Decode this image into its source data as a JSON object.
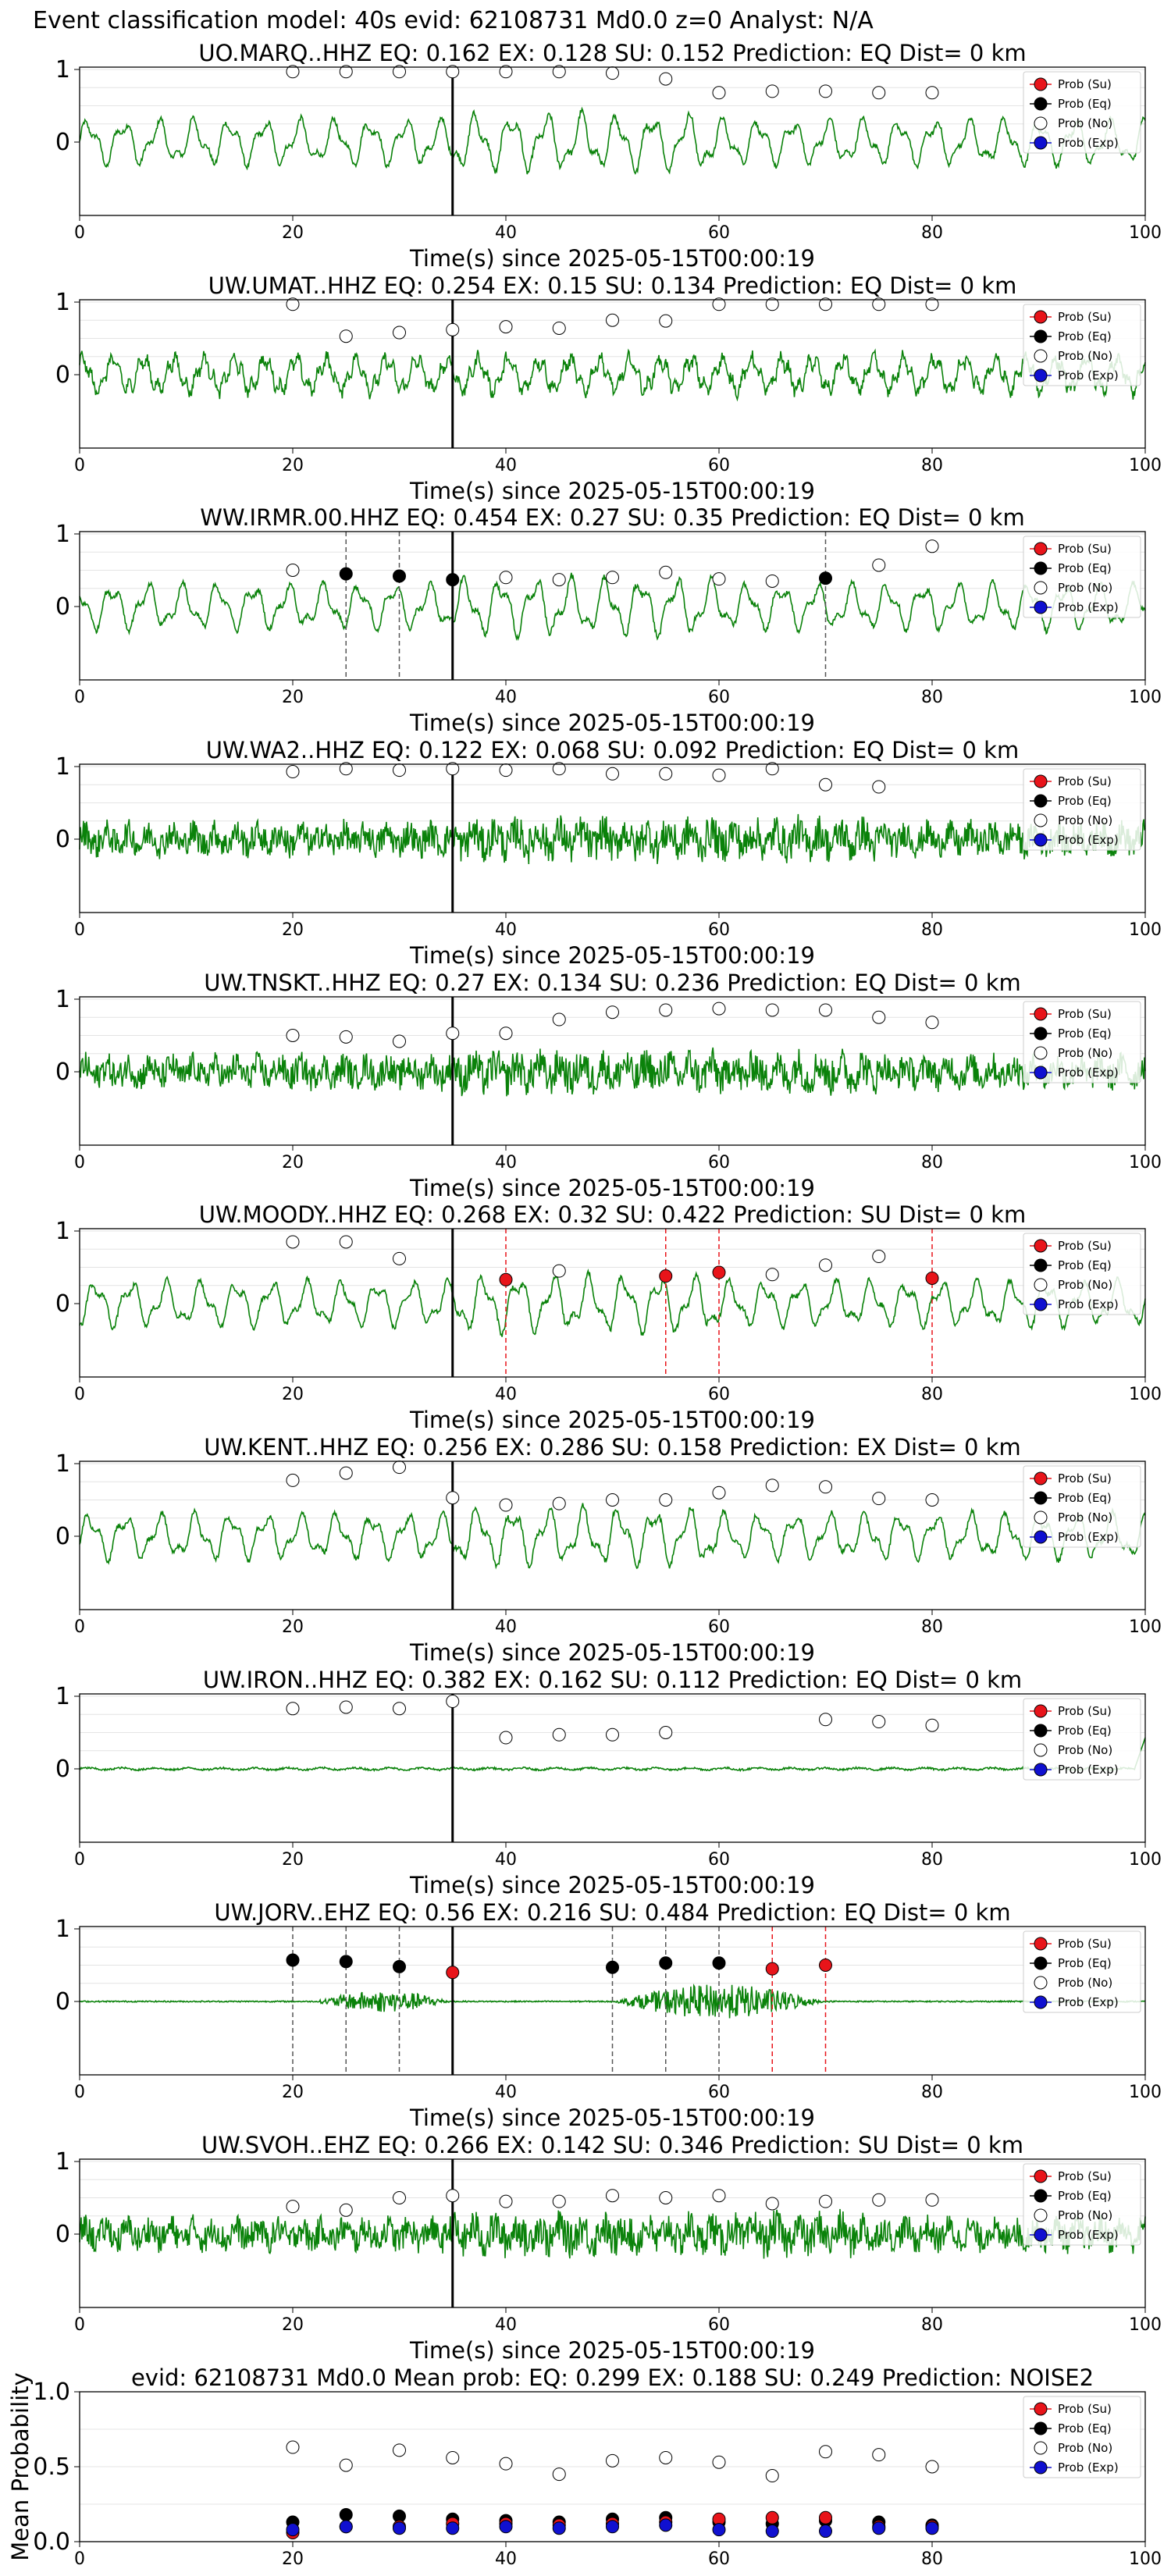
{
  "figure_title": "Event classification model: 40s evid: 62108731 Md0.0 z=0 Analyst: N/A",
  "legend_labels": [
    "Prob (Su)",
    "Prob (Eq)",
    "Prob (No)",
    "Prob (Exp)"
  ],
  "colors": {
    "su": "#e8141a",
    "eq": "#000000",
    "no": "#ffffff",
    "exp": "#1010d0",
    "waveform": "#0a820a",
    "dashed_black": "#555555",
    "dashed_red": "#e8141a"
  },
  "chart_data": [
    {
      "type": "line",
      "title": "UO.MARQ..HHZ   EQ: 0.162  EX: 0.128  SU: 0.152   Prediction: EQ    Dist= 0 km",
      "xlabel": "Time(s) since 2025-05-15T00:00:19",
      "xlim": [
        0,
        100
      ],
      "xticks": [
        0,
        20,
        40,
        60,
        80,
        100
      ],
      "yticks": [
        0,
        1
      ],
      "waveform_style": "regular",
      "event_line": 35,
      "dashed_lines": [],
      "points": [
        {
          "x": 20,
          "y": 0.97,
          "cls": "no"
        },
        {
          "x": 25,
          "y": 0.97,
          "cls": "no"
        },
        {
          "x": 30,
          "y": 0.97,
          "cls": "no"
        },
        {
          "x": 35,
          "y": 0.97,
          "cls": "no"
        },
        {
          "x": 40,
          "y": 0.97,
          "cls": "no"
        },
        {
          "x": 45,
          "y": 0.97,
          "cls": "no"
        },
        {
          "x": 50,
          "y": 0.95,
          "cls": "no"
        },
        {
          "x": 55,
          "y": 0.87,
          "cls": "no"
        },
        {
          "x": 60,
          "y": 0.68,
          "cls": "no"
        },
        {
          "x": 65,
          "y": 0.7,
          "cls": "no"
        },
        {
          "x": 70,
          "y": 0.7,
          "cls": "no"
        },
        {
          "x": 75,
          "y": 0.68,
          "cls": "no"
        },
        {
          "x": 80,
          "y": 0.68,
          "cls": "no"
        }
      ]
    },
    {
      "type": "line",
      "title": "UW.UMAT..HHZ   EQ: 0.254  EX: 0.15  SU: 0.134   Prediction: EQ    Dist= 0 km",
      "xlabel": "Time(s) since 2025-05-15T00:00:19",
      "xlim": [
        0,
        100
      ],
      "xticks": [
        0,
        20,
        40,
        60,
        80,
        100
      ],
      "yticks": [
        0,
        1
      ],
      "waveform_style": "noisy",
      "event_line": 35,
      "dashed_lines": [],
      "points": [
        {
          "x": 20,
          "y": 0.97,
          "cls": "no"
        },
        {
          "x": 25,
          "y": 0.53,
          "cls": "no"
        },
        {
          "x": 30,
          "y": 0.58,
          "cls": "no"
        },
        {
          "x": 35,
          "y": 0.62,
          "cls": "no"
        },
        {
          "x": 40,
          "y": 0.66,
          "cls": "no"
        },
        {
          "x": 45,
          "y": 0.64,
          "cls": "no"
        },
        {
          "x": 50,
          "y": 0.75,
          "cls": "no"
        },
        {
          "x": 55,
          "y": 0.74,
          "cls": "no"
        },
        {
          "x": 60,
          "y": 0.97,
          "cls": "no"
        },
        {
          "x": 65,
          "y": 0.97,
          "cls": "no"
        },
        {
          "x": 70,
          "y": 0.97,
          "cls": "no"
        },
        {
          "x": 75,
          "y": 0.97,
          "cls": "no"
        },
        {
          "x": 80,
          "y": 0.97,
          "cls": "no"
        }
      ]
    },
    {
      "type": "line",
      "title": "WW.IRMR.00.HHZ   EQ: 0.454  EX: 0.27  SU: 0.35   Prediction: EQ    Dist= 0 km",
      "xlabel": "Time(s) since 2025-05-15T00:00:19",
      "xlim": [
        0,
        100
      ],
      "xticks": [
        0,
        20,
        40,
        60,
        80,
        100
      ],
      "yticks": [
        0,
        1
      ],
      "waveform_style": "regular",
      "event_line": 35,
      "dashed_lines": [
        {
          "x": 25,
          "color": "black"
        },
        {
          "x": 30,
          "color": "black"
        },
        {
          "x": 70,
          "color": "black"
        }
      ],
      "points": [
        {
          "x": 20,
          "y": 0.5,
          "cls": "no"
        },
        {
          "x": 25,
          "y": 0.45,
          "cls": "eq"
        },
        {
          "x": 30,
          "y": 0.42,
          "cls": "eq"
        },
        {
          "x": 35,
          "y": 0.37,
          "cls": "eq"
        },
        {
          "x": 40,
          "y": 0.4,
          "cls": "no"
        },
        {
          "x": 45,
          "y": 0.37,
          "cls": "no"
        },
        {
          "x": 50,
          "y": 0.4,
          "cls": "no"
        },
        {
          "x": 55,
          "y": 0.47,
          "cls": "no"
        },
        {
          "x": 60,
          "y": 0.38,
          "cls": "no"
        },
        {
          "x": 65,
          "y": 0.35,
          "cls": "no"
        },
        {
          "x": 70,
          "y": 0.39,
          "cls": "eq"
        },
        {
          "x": 75,
          "y": 0.57,
          "cls": "no"
        },
        {
          "x": 80,
          "y": 0.83,
          "cls": "no"
        }
      ]
    },
    {
      "type": "line",
      "title": "UW.WA2..HHZ   EQ: 0.122  EX: 0.068  SU: 0.092   Prediction: EQ    Dist= 0 km",
      "xlabel": "Time(s) since 2025-05-15T00:00:19",
      "xlim": [
        0,
        100
      ],
      "xticks": [
        0,
        20,
        40,
        60,
        80,
        100
      ],
      "yticks": [
        0,
        1
      ],
      "waveform_style": "dense",
      "event_line": 35,
      "dashed_lines": [],
      "points": [
        {
          "x": 20,
          "y": 0.93,
          "cls": "no"
        },
        {
          "x": 25,
          "y": 0.97,
          "cls": "no"
        },
        {
          "x": 30,
          "y": 0.95,
          "cls": "no"
        },
        {
          "x": 35,
          "y": 0.97,
          "cls": "no"
        },
        {
          "x": 40,
          "y": 0.95,
          "cls": "no"
        },
        {
          "x": 45,
          "y": 0.97,
          "cls": "no"
        },
        {
          "x": 50,
          "y": 0.9,
          "cls": "no"
        },
        {
          "x": 55,
          "y": 0.9,
          "cls": "no"
        },
        {
          "x": 60,
          "y": 0.88,
          "cls": "no"
        },
        {
          "x": 65,
          "y": 0.97,
          "cls": "no"
        },
        {
          "x": 70,
          "y": 0.75,
          "cls": "no"
        },
        {
          "x": 75,
          "y": 0.72,
          "cls": "no"
        }
      ]
    },
    {
      "type": "line",
      "title": "UW.TNSKT..HHZ   EQ: 0.27  EX: 0.134  SU: 0.236   Prediction: EQ    Dist= 0 km",
      "xlabel": "Time(s) since 2025-05-15T00:00:19",
      "xlim": [
        0,
        100
      ],
      "xticks": [
        0,
        20,
        40,
        60,
        80,
        100
      ],
      "yticks": [
        0,
        1
      ],
      "waveform_style": "dense",
      "event_line": 35,
      "dashed_lines": [],
      "points": [
        {
          "x": 20,
          "y": 0.5,
          "cls": "no"
        },
        {
          "x": 25,
          "y": 0.48,
          "cls": "no"
        },
        {
          "x": 30,
          "y": 0.42,
          "cls": "no"
        },
        {
          "x": 35,
          "y": 0.53,
          "cls": "no"
        },
        {
          "x": 40,
          "y": 0.53,
          "cls": "no"
        },
        {
          "x": 45,
          "y": 0.72,
          "cls": "no"
        },
        {
          "x": 50,
          "y": 0.82,
          "cls": "no"
        },
        {
          "x": 55,
          "y": 0.85,
          "cls": "no"
        },
        {
          "x": 60,
          "y": 0.87,
          "cls": "no"
        },
        {
          "x": 65,
          "y": 0.85,
          "cls": "no"
        },
        {
          "x": 70,
          "y": 0.85,
          "cls": "no"
        },
        {
          "x": 75,
          "y": 0.75,
          "cls": "no"
        },
        {
          "x": 80,
          "y": 0.68,
          "cls": "no"
        }
      ]
    },
    {
      "type": "line",
      "title": "UW.MOODY..HHZ   EQ: 0.268  EX: 0.32  SU: 0.422   Prediction: SU    Dist= 0 km",
      "xlabel": "Time(s) since 2025-05-15T00:00:19",
      "xlim": [
        0,
        100
      ],
      "xticks": [
        0,
        20,
        40,
        60,
        80,
        100
      ],
      "yticks": [
        0,
        1
      ],
      "waveform_style": "regular",
      "event_line": 35,
      "dashed_lines": [
        {
          "x": 40,
          "color": "red"
        },
        {
          "x": 55,
          "color": "red"
        },
        {
          "x": 60,
          "color": "red"
        },
        {
          "x": 80,
          "color": "red"
        }
      ],
      "points": [
        {
          "x": 20,
          "y": 0.85,
          "cls": "no"
        },
        {
          "x": 25,
          "y": 0.85,
          "cls": "no"
        },
        {
          "x": 30,
          "y": 0.62,
          "cls": "no"
        },
        {
          "x": 40,
          "y": 0.33,
          "cls": "su"
        },
        {
          "x": 45,
          "y": 0.45,
          "cls": "no"
        },
        {
          "x": 55,
          "y": 0.38,
          "cls": "su"
        },
        {
          "x": 60,
          "y": 0.43,
          "cls": "su"
        },
        {
          "x": 65,
          "y": 0.4,
          "cls": "no"
        },
        {
          "x": 70,
          "y": 0.53,
          "cls": "no"
        },
        {
          "x": 75,
          "y": 0.65,
          "cls": "no"
        },
        {
          "x": 80,
          "y": 0.35,
          "cls": "su"
        }
      ]
    },
    {
      "type": "line",
      "title": "UW.KENT..HHZ   EQ: 0.256  EX: 0.286  SU: 0.158   Prediction: EX    Dist= 0 km",
      "xlabel": "Time(s) since 2025-05-15T00:00:19",
      "xlim": [
        0,
        100
      ],
      "xticks": [
        0,
        20,
        40,
        60,
        80,
        100
      ],
      "yticks": [
        0,
        1
      ],
      "waveform_style": "regular",
      "event_line": 35,
      "dashed_lines": [],
      "points": [
        {
          "x": 20,
          "y": 0.77,
          "cls": "no"
        },
        {
          "x": 25,
          "y": 0.87,
          "cls": "no"
        },
        {
          "x": 30,
          "y": 0.95,
          "cls": "no"
        },
        {
          "x": 35,
          "y": 0.53,
          "cls": "no"
        },
        {
          "x": 40,
          "y": 0.43,
          "cls": "no"
        },
        {
          "x": 45,
          "y": 0.45,
          "cls": "no"
        },
        {
          "x": 50,
          "y": 0.5,
          "cls": "no"
        },
        {
          "x": 55,
          "y": 0.5,
          "cls": "no"
        },
        {
          "x": 60,
          "y": 0.6,
          "cls": "no"
        },
        {
          "x": 65,
          "y": 0.7,
          "cls": "no"
        },
        {
          "x": 70,
          "y": 0.68,
          "cls": "no"
        },
        {
          "x": 75,
          "y": 0.52,
          "cls": "no"
        },
        {
          "x": 80,
          "y": 0.5,
          "cls": "no"
        }
      ]
    },
    {
      "type": "line",
      "title": "UW.IRON..HHZ   EQ: 0.382  EX: 0.162  SU: 0.112   Prediction: EQ    Dist= 0 km",
      "xlabel": "Time(s) since 2025-05-15T00:00:19",
      "xlim": [
        0,
        100
      ],
      "xticks": [
        0,
        20,
        40,
        60,
        80,
        100
      ],
      "yticks": [
        0,
        1
      ],
      "waveform_style": "flat",
      "event_line": 35,
      "dashed_lines": [],
      "points": [
        {
          "x": 20,
          "y": 0.83,
          "cls": "no"
        },
        {
          "x": 25,
          "y": 0.85,
          "cls": "no"
        },
        {
          "x": 30,
          "y": 0.83,
          "cls": "no"
        },
        {
          "x": 35,
          "y": 0.93,
          "cls": "no"
        },
        {
          "x": 40,
          "y": 0.43,
          "cls": "no"
        },
        {
          "x": 45,
          "y": 0.47,
          "cls": "no"
        },
        {
          "x": 50,
          "y": 0.47,
          "cls": "no"
        },
        {
          "x": 55,
          "y": 0.5,
          "cls": "no"
        },
        {
          "x": 70,
          "y": 0.68,
          "cls": "no"
        },
        {
          "x": 75,
          "y": 0.65,
          "cls": "no"
        },
        {
          "x": 80,
          "y": 0.6,
          "cls": "no"
        }
      ]
    },
    {
      "type": "line",
      "title": "UW.JORV..EHZ   EQ: 0.56  EX: 0.216  SU: 0.484   Prediction: EQ    Dist= 0 km",
      "xlabel": "Time(s) since 2025-05-15T00:00:19",
      "xlim": [
        0,
        100
      ],
      "xticks": [
        0,
        20,
        40,
        60,
        80,
        100
      ],
      "yticks": [
        0,
        1
      ],
      "waveform_style": "bursts",
      "event_line": 35,
      "dashed_lines": [
        {
          "x": 20,
          "color": "black"
        },
        {
          "x": 25,
          "color": "black"
        },
        {
          "x": 30,
          "color": "black"
        },
        {
          "x": 50,
          "color": "black"
        },
        {
          "x": 55,
          "color": "black"
        },
        {
          "x": 60,
          "color": "black"
        },
        {
          "x": 65,
          "color": "red"
        },
        {
          "x": 70,
          "color": "red"
        }
      ],
      "points": [
        {
          "x": 20,
          "y": 0.57,
          "cls": "eq"
        },
        {
          "x": 25,
          "y": 0.55,
          "cls": "eq"
        },
        {
          "x": 30,
          "y": 0.48,
          "cls": "eq"
        },
        {
          "x": 35,
          "y": 0.4,
          "cls": "su"
        },
        {
          "x": 50,
          "y": 0.47,
          "cls": "eq"
        },
        {
          "x": 55,
          "y": 0.53,
          "cls": "eq"
        },
        {
          "x": 60,
          "y": 0.53,
          "cls": "eq"
        },
        {
          "x": 65,
          "y": 0.45,
          "cls": "su"
        },
        {
          "x": 70,
          "y": 0.5,
          "cls": "su"
        }
      ]
    },
    {
      "type": "line",
      "title": "UW.SVOH..EHZ   EQ: 0.266  EX: 0.142  SU: 0.346   Prediction: SU    Dist= 0 km",
      "xlabel": "Time(s) since 2025-05-15T00:00:19",
      "xlim": [
        0,
        100
      ],
      "xticks": [
        0,
        20,
        40,
        60,
        80,
        100
      ],
      "yticks": [
        0,
        1
      ],
      "waveform_style": "dense",
      "event_line": 35,
      "dashed_lines": [],
      "points": [
        {
          "x": 20,
          "y": 0.38,
          "cls": "no"
        },
        {
          "x": 25,
          "y": 0.33,
          "cls": "no"
        },
        {
          "x": 30,
          "y": 0.5,
          "cls": "no"
        },
        {
          "x": 35,
          "y": 0.53,
          "cls": "no"
        },
        {
          "x": 40,
          "y": 0.45,
          "cls": "no"
        },
        {
          "x": 45,
          "y": 0.45,
          "cls": "no"
        },
        {
          "x": 50,
          "y": 0.53,
          "cls": "no"
        },
        {
          "x": 55,
          "y": 0.5,
          "cls": "no"
        },
        {
          "x": 60,
          "y": 0.53,
          "cls": "no"
        },
        {
          "x": 65,
          "y": 0.42,
          "cls": "no"
        },
        {
          "x": 70,
          "y": 0.45,
          "cls": "no"
        },
        {
          "x": 75,
          "y": 0.47,
          "cls": "no"
        },
        {
          "x": 80,
          "y": 0.47,
          "cls": "no"
        }
      ]
    },
    {
      "type": "scatter",
      "title": "evid: 62108731  Md0.0   Mean prob:   EQ: 0.299  EX: 0.188  SU: 0.249   Prediction: NOISE2",
      "ylabel": "Mean Probability",
      "xlim": [
        0,
        100
      ],
      "ylim": [
        0,
        1
      ],
      "xticks": [
        0,
        20,
        40,
        60,
        80,
        100
      ],
      "yticks": [
        0.0,
        0.5,
        1.0
      ],
      "series": [
        {
          "cls": "no",
          "x": [
            20,
            25,
            30,
            35,
            40,
            45,
            50,
            55,
            60,
            65,
            70,
            75,
            80
          ],
          "values": [
            0.63,
            0.51,
            0.61,
            0.56,
            0.52,
            0.45,
            0.54,
            0.56,
            0.53,
            0.44,
            0.6,
            0.58,
            0.5
          ]
        },
        {
          "cls": "eq",
          "x": [
            20,
            25,
            30,
            35,
            40,
            45,
            50,
            55,
            60,
            65,
            70,
            75,
            80
          ],
          "values": [
            0.13,
            0.18,
            0.17,
            0.15,
            0.14,
            0.13,
            0.15,
            0.16,
            0.13,
            0.12,
            0.14,
            0.13,
            0.11
          ]
        },
        {
          "cls": "su",
          "x": [
            20,
            25,
            30,
            35,
            40,
            45,
            50,
            55,
            60,
            65,
            70,
            75,
            80
          ],
          "values": [
            0.06,
            0.1,
            0.1,
            0.12,
            0.12,
            0.11,
            0.12,
            0.13,
            0.15,
            0.16,
            0.16,
            0.1,
            0.1
          ]
        },
        {
          "cls": "exp",
          "x": [
            20,
            25,
            30,
            35,
            40,
            45,
            50,
            55,
            60,
            65,
            70,
            75,
            80
          ],
          "values": [
            0.08,
            0.1,
            0.09,
            0.09,
            0.1,
            0.09,
            0.1,
            0.11,
            0.08,
            0.07,
            0.07,
            0.09,
            0.09
          ]
        }
      ]
    }
  ]
}
